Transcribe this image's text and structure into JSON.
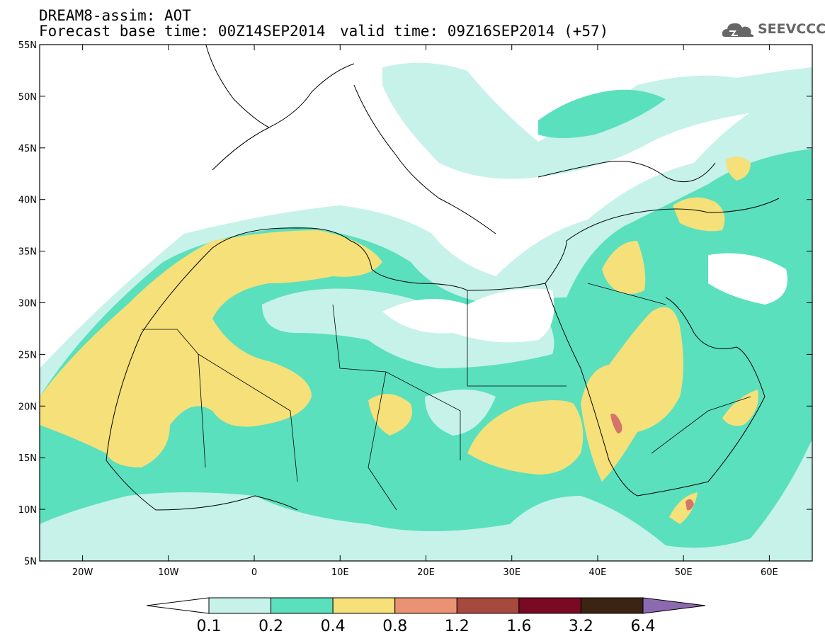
{
  "header": {
    "title_line1": "DREAM8-assim: AOT",
    "title_line2": "Forecast base time: 00Z14SEP2014",
    "valid_time": "valid time: 09Z16SEP2014 (+57)",
    "logo_text": "SEEVCCC",
    "logo_icon": "cloud-icon"
  },
  "map": {
    "lon_range": [
      -25,
      65
    ],
    "lat_range": [
      5,
      55
    ],
    "lat_ticks": [
      {
        "value": 55,
        "label": "55N"
      },
      {
        "value": 50,
        "label": "50N"
      },
      {
        "value": 45,
        "label": "45N"
      },
      {
        "value": 40,
        "label": "40N"
      },
      {
        "value": 35,
        "label": "35N"
      },
      {
        "value": 30,
        "label": "30N"
      },
      {
        "value": 25,
        "label": "25N"
      },
      {
        "value": 20,
        "label": "20N"
      },
      {
        "value": 15,
        "label": "15N"
      },
      {
        "value": 10,
        "label": "10N"
      },
      {
        "value": 5,
        "label": "5N"
      }
    ],
    "lon_ticks": [
      {
        "value": -20,
        "label": "20W"
      },
      {
        "value": -10,
        "label": "10W"
      },
      {
        "value": 0,
        "label": "0"
      },
      {
        "value": 10,
        "label": "10E"
      },
      {
        "value": 20,
        "label": "20E"
      },
      {
        "value": 30,
        "label": "30E"
      },
      {
        "value": 40,
        "label": "40E"
      },
      {
        "value": 50,
        "label": "50E"
      },
      {
        "value": 60,
        "label": "60E"
      }
    ]
  },
  "colorbar": {
    "colors": [
      "#ffffff",
      "#c6f2ea",
      "#5ae0bd",
      "#f5e07a",
      "#eb9274",
      "#a8493e",
      "#7a0a24",
      "#3b2414",
      "#8c6ab0"
    ],
    "labels": [
      "0.1",
      "0.2",
      "0.4",
      "0.8",
      "1.2",
      "1.6",
      "3.2",
      "6.4"
    ]
  }
}
